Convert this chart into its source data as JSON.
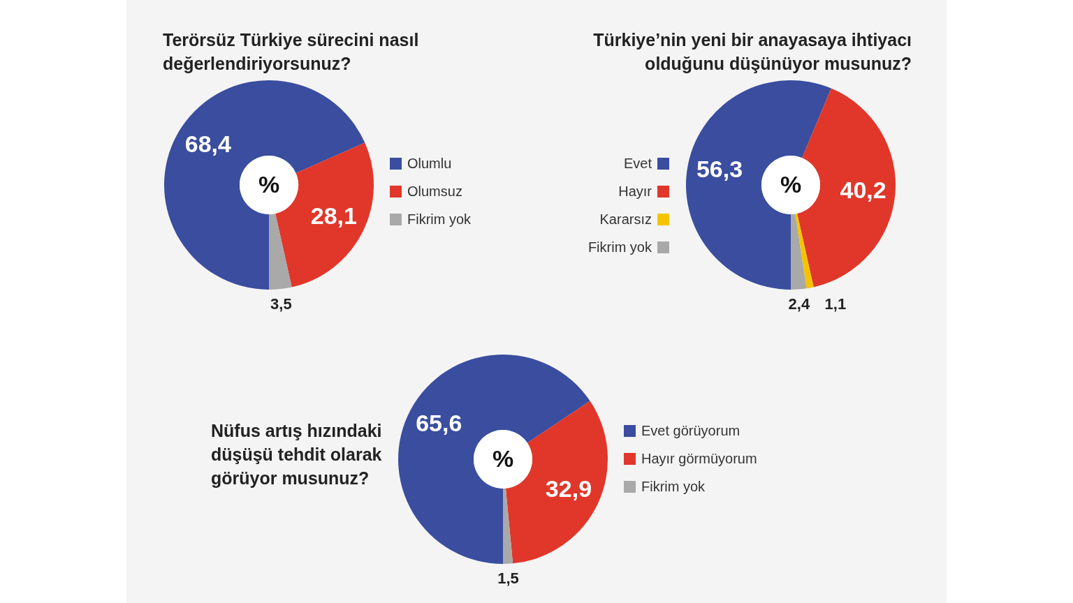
{
  "chart_data": [
    {
      "type": "donut",
      "title": "Terörsüz Türkiye sürecini nasıl değerlendiriyorsunuz?",
      "categories": [
        "Olumlu",
        "Olumsuz",
        "Fikrim yok"
      ],
      "values": [
        68.4,
        28.1,
        3.5
      ],
      "colors": [
        "#3a4d9f",
        "#e0372a",
        "#a9a9a9"
      ],
      "value_labels": [
        "68,4",
        "28,1",
        "3,5"
      ],
      "legend": "right",
      "annotations": [
        "%"
      ]
    },
    {
      "type": "donut",
      "title": "Türkiye’nin yeni bir anayasaya ihtiyacı olduğunu düşünüyor musunuz?",
      "categories": [
        "Evet",
        "Hayır",
        "Kararsız",
        "Fikrim yok"
      ],
      "values": [
        56.3,
        40.2,
        1.1,
        2.4
      ],
      "colors": [
        "#3a4d9f",
        "#e0372a",
        "#f5c400",
        "#a9a9a9"
      ],
      "value_labels": [
        "56,3",
        "40,2",
        "1,1",
        "2,4"
      ],
      "legend": "left",
      "annotations": [
        "%"
      ]
    },
    {
      "type": "donut",
      "title": "Nüfus artış hızındaki düşüşü tehdit olarak görüyor musunuz?",
      "categories": [
        "Evet görüyorum",
        "Hayır görmüyorum",
        "Fikrim yok"
      ],
      "values": [
        65.6,
        32.9,
        1.5
      ],
      "colors": [
        "#3a4d9f",
        "#e0372a",
        "#a9a9a9"
      ],
      "value_labels": [
        "65,6",
        "32,9",
        "1,5"
      ],
      "legend": "right",
      "annotations": [
        "%"
      ]
    }
  ]
}
